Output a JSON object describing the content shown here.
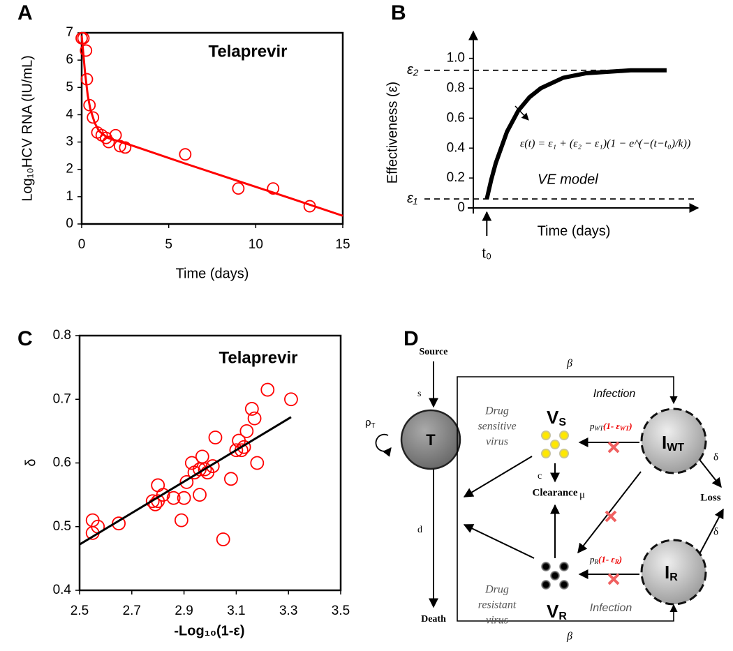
{
  "chart_data": [
    {
      "type": "scatter",
      "panel": "A",
      "annotation": "Telaprevir",
      "annotation_color": "#ff0000",
      "xlabel": "Time (days)",
      "ylabel": "Log₁₀HCV RNA (IU/mL)",
      "xlim": [
        0,
        15
      ],
      "ylim": [
        0,
        7
      ],
      "xticks": [
        0,
        5,
        10,
        15
      ],
      "yticks": [
        0,
        1,
        2,
        3,
        4,
        5,
        6,
        7
      ],
      "frame": true,
      "series": [
        {
          "mode": "markers",
          "color": "#ff0000",
          "x": [
            0,
            0.1,
            0.25,
            0.3,
            0.45,
            0.65,
            0.9,
            1.15,
            1.4,
            1.55,
            1.95,
            2.2,
            2.5,
            5.95,
            9,
            11,
            13.1
          ],
          "values": [
            6.8,
            6.8,
            6.35,
            5.3,
            4.35,
            3.9,
            3.35,
            3.25,
            3.15,
            3.0,
            3.25,
            2.85,
            2.8,
            2.55,
            1.3,
            1.3,
            0.65
          ]
        },
        {
          "mode": "lines",
          "color": "#ff0000",
          "x": [
            0,
            0.1,
            0.2,
            0.35,
            0.5,
            0.75,
            1,
            1.5,
            2,
            3,
            6,
            9,
            12,
            15
          ],
          "values": [
            6.9,
            6.2,
            5.5,
            4.7,
            4.2,
            3.7,
            3.4,
            3.15,
            3.05,
            2.85,
            2.2,
            1.57,
            0.94,
            0.3
          ]
        }
      ]
    },
    {
      "type": "line",
      "panel": "B",
      "xlabel": "Time (days)",
      "ylabel": "Effectiveness (ε)",
      "xlim": [
        0,
        10
      ],
      "ylim": [
        0,
        1.18
      ],
      "yticks": [
        0,
        0.2,
        0.4,
        0.6,
        0.8,
        {
          "value": 1,
          "label": "1.0"
        }
      ],
      "axis_arrows": true,
      "reference_lines": [
        {
          "value": 0.92,
          "label": "ε₂"
        },
        {
          "value": 0.06,
          "label": "ε₁"
        }
      ],
      "start_marker": {
        "value": 0.6,
        "label": "t₀"
      },
      "formula": "ε(t) = ε₁ + (ε₂ − ε₁)(1 − e^(−(t−t₀)/k))",
      "annotation": "VE model",
      "series": [
        {
          "mode": "lines",
          "color": "#000000",
          "x": [
            0.6,
            0.8,
            1,
            1.5,
            2,
            2.5,
            3,
            4,
            5,
            6,
            7,
            8.6
          ],
          "values": [
            0.06,
            0.19,
            0.3,
            0.51,
            0.65,
            0.74,
            0.8,
            0.87,
            0.9,
            0.91,
            0.92,
            0.92
          ]
        }
      ]
    },
    {
      "type": "scatter",
      "panel": "C",
      "annotation": "Telaprevir",
      "annotation_color": "#ff0000",
      "xlabel": "-Log₁₀(1-ε)",
      "ylabel": "δ",
      "xlim": [
        2.5,
        3.5
      ],
      "ylim": [
        0.4,
        0.8
      ],
      "xticks": [
        2.5,
        2.7,
        2.9,
        3.1,
        3.3,
        3.5
      ],
      "yticks": [
        0.4,
        0.5,
        0.6,
        0.7,
        0.8
      ],
      "frame": true,
      "series": [
        {
          "mode": "markers",
          "color": "#ff0000",
          "x": [
            2.55,
            2.57,
            2.55,
            2.65,
            2.78,
            2.79,
            2.8,
            2.8,
            2.82,
            2.86,
            2.89,
            2.9,
            2.91,
            2.94,
            2.96,
            2.97,
            2.99,
            2.98,
            3.01,
            3.02,
            3.05,
            3.08,
            3.1,
            3.11,
            3.12,
            3.13,
            3.14,
            3.16,
            3.17,
            3.18,
            3.22,
            3.31,
            2.96,
            2.93
          ],
          "values": [
            0.51,
            0.5,
            0.49,
            0.505,
            0.54,
            0.535,
            0.565,
            0.54,
            0.55,
            0.545,
            0.51,
            0.545,
            0.57,
            0.585,
            0.59,
            0.61,
            0.585,
            0.59,
            0.595,
            0.64,
            0.48,
            0.575,
            0.62,
            0.635,
            0.62,
            0.625,
            0.65,
            0.685,
            0.67,
            0.6,
            0.715,
            0.7,
            0.55,
            0.6
          ]
        },
        {
          "mode": "lines",
          "color": "#000000",
          "x": [
            2.5,
            3.31
          ],
          "values": [
            0.472,
            0.672
          ]
        }
      ]
    }
  ],
  "diagram": {
    "panel": "D",
    "labels": {
      "source": "Source",
      "death": "Death",
      "clearance": "Clearance",
      "loss": "Loss",
      "rate_s": "s",
      "rate_d": "d",
      "rate_c": "c",
      "rate_mu": "μ",
      "beta_top": "β",
      "beta_bottom": "β",
      "delta_wt": "δ",
      "delta_r": "δ",
      "infection_top": "Infection",
      "infection_bottom": "Infection",
      "sensitive": [
        "Drug",
        "sensitive",
        "virus"
      ],
      "resistant": [
        "Drug",
        "resistant",
        "virus"
      ]
    },
    "proliferation": {
      "label": "ρ",
      "sub": "T"
    },
    "nodes": [
      {
        "label": "T"
      },
      {
        "label": "V",
        "sub": "S"
      },
      {
        "label": "V",
        "sub": "R"
      },
      {
        "label": "I",
        "sub": "WT"
      },
      {
        "label": "I",
        "sub": "R"
      }
    ],
    "inhibition": [
      {
        "p": "p",
        "p_sub": "WT",
        "eff": "(1- ε",
        "eff_sub": "WT",
        "close": ")"
      },
      {
        "p": "p",
        "p_sub": "R",
        "eff": "(1- ε",
        "eff_sub": "R",
        "close": ")"
      }
    ]
  }
}
